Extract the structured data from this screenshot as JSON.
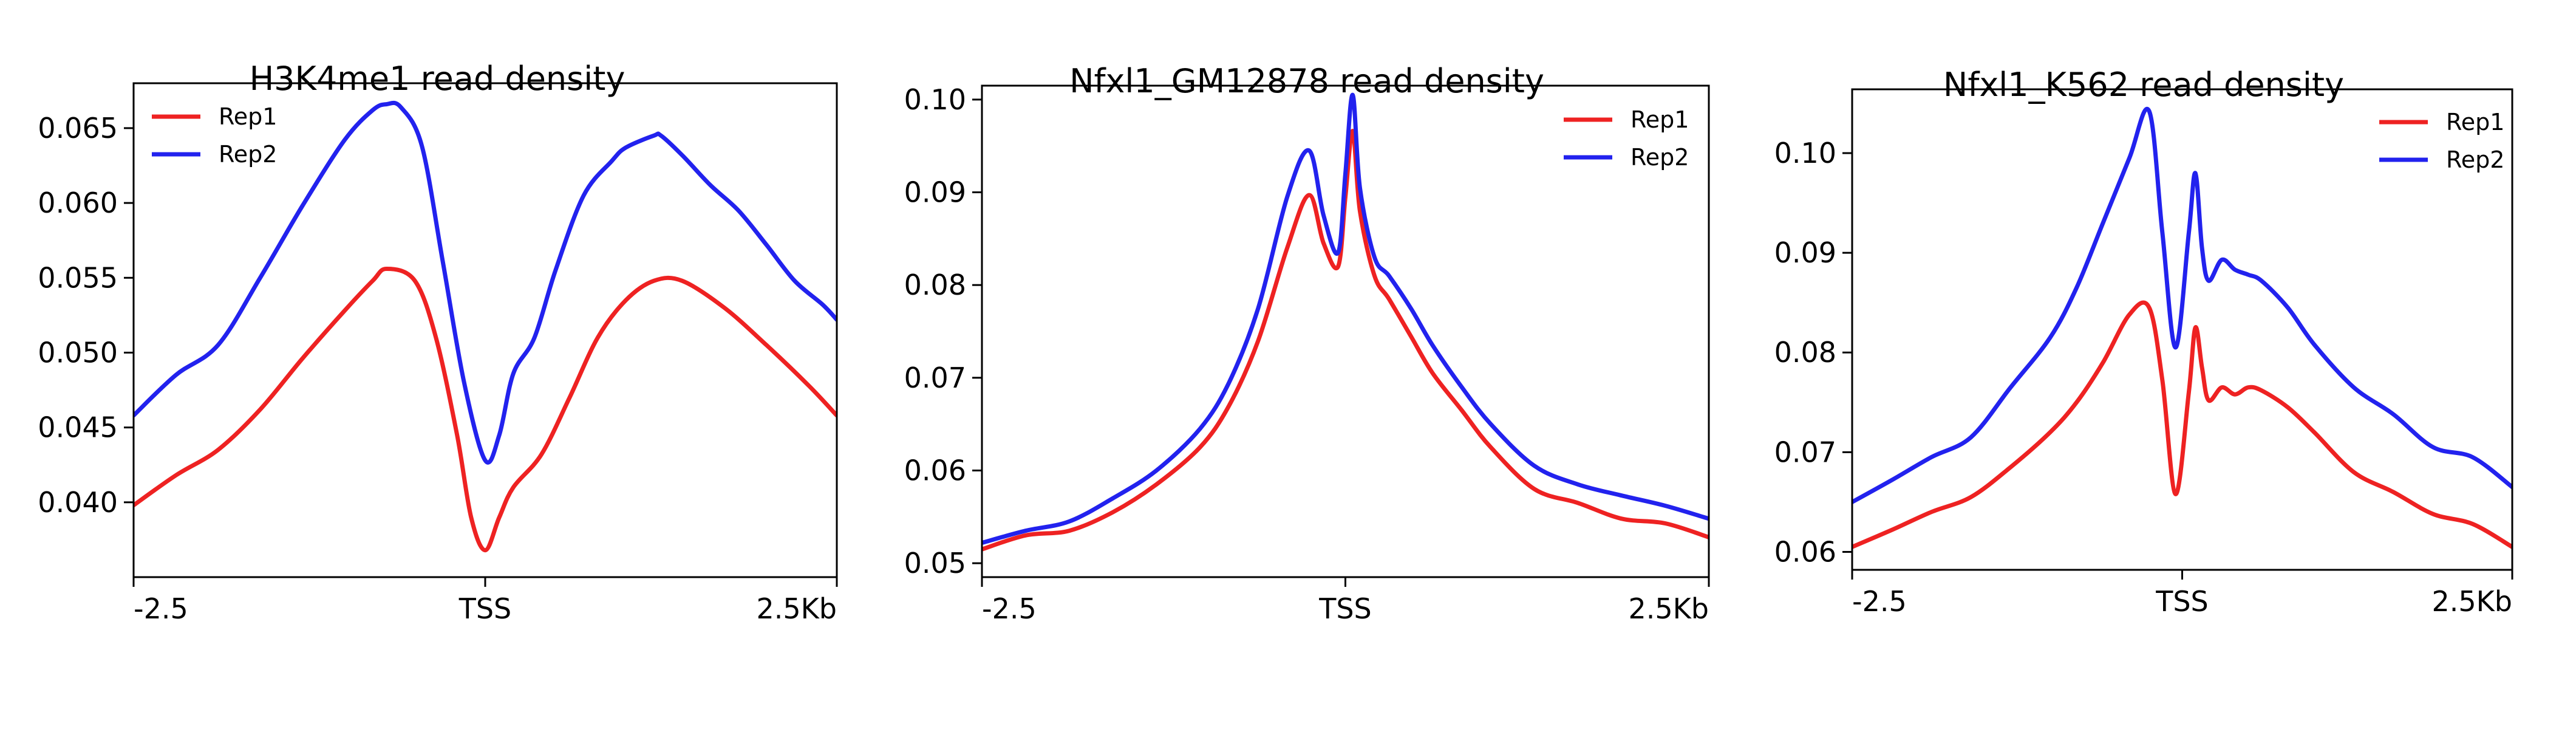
{
  "colors": {
    "rep1": "#ee2222",
    "rep2": "#2222ee"
  },
  "chart_data": [
    {
      "type": "line",
      "title": "H3K4me1 read density",
      "xlim": [
        -2.5,
        2.5
      ],
      "ylim": [
        0.035,
        0.068
      ],
      "xticks": [
        {
          "value": -2.5,
          "label": "-2.5"
        },
        {
          "value": 0,
          "label": "TSS"
        },
        {
          "value": 2.5,
          "label": "2.5Kb"
        }
      ],
      "yticks": [
        {
          "value": 0.04,
          "label": "0.040"
        },
        {
          "value": 0.045,
          "label": "0.045"
        },
        {
          "value": 0.05,
          "label": "0.050"
        },
        {
          "value": 0.055,
          "label": "0.055"
        },
        {
          "value": 0.06,
          "label": "0.060"
        },
        {
          "value": 0.065,
          "label": "0.065"
        }
      ],
      "legend": "top-left",
      "series": [
        {
          "name": "Rep1",
          "color": "#ee2222",
          "x": [
            -2.5,
            -2.2,
            -1.9,
            -1.6,
            -1.3,
            -1.0,
            -0.8,
            -0.7,
            -0.5,
            -0.35,
            -0.2,
            -0.1,
            0.0,
            0.1,
            0.2,
            0.4,
            0.6,
            0.8,
            1.0,
            1.2,
            1.4,
            1.7,
            2.0,
            2.3,
            2.5
          ],
          "y": [
            0.0398,
            0.0418,
            0.0435,
            0.0462,
            0.0496,
            0.0528,
            0.0548,
            0.0556,
            0.0548,
            0.051,
            0.0445,
            0.039,
            0.0368,
            0.039,
            0.041,
            0.0432,
            0.047,
            0.051,
            0.0535,
            0.0548,
            0.0548,
            0.053,
            0.0505,
            0.0478,
            0.0458
          ]
        },
        {
          "name": "Rep2",
          "color": "#2222ee",
          "x": [
            -2.5,
            -2.2,
            -1.9,
            -1.6,
            -1.3,
            -1.0,
            -0.8,
            -0.7,
            -0.6,
            -0.45,
            -0.3,
            -0.15,
            0.0,
            0.1,
            0.2,
            0.35,
            0.5,
            0.7,
            0.9,
            1.0,
            1.2,
            1.25,
            1.4,
            1.6,
            1.8,
            2.0,
            2.2,
            2.4,
            2.5
          ],
          "y": [
            0.0458,
            0.0485,
            0.0505,
            0.055,
            0.0598,
            0.0642,
            0.0662,
            0.0666,
            0.0664,
            0.0638,
            0.056,
            0.048,
            0.0428,
            0.0445,
            0.0486,
            0.051,
            0.0555,
            0.0605,
            0.0628,
            0.0637,
            0.0645,
            0.0645,
            0.0632,
            0.0612,
            0.0595,
            0.0572,
            0.0548,
            0.0532,
            0.0522
          ]
        }
      ]
    },
    {
      "type": "line",
      "title": "Nfxl1_GM12878 read density",
      "xlim": [
        -2.5,
        2.5
      ],
      "ylim": [
        0.0485,
        0.1015
      ],
      "xticks": [
        {
          "value": -2.5,
          "label": "-2.5"
        },
        {
          "value": 0,
          "label": "TSS"
        },
        {
          "value": 2.5,
          "label": "2.5Kb"
        }
      ],
      "yticks": [
        {
          "value": 0.05,
          "label": "0.05"
        },
        {
          "value": 0.06,
          "label": "0.06"
        },
        {
          "value": 0.07,
          "label": "0.07"
        },
        {
          "value": 0.08,
          "label": "0.08"
        },
        {
          "value": 0.09,
          "label": "0.09"
        },
        {
          "value": 0.1,
          "label": "0.10"
        }
      ],
      "legend": "top-right",
      "series": [
        {
          "name": "Rep1",
          "color": "#ee2222",
          "x": [
            -2.5,
            -2.2,
            -1.9,
            -1.6,
            -1.3,
            -1.0,
            -0.8,
            -0.6,
            -0.4,
            -0.25,
            -0.15,
            -0.05,
            0.0,
            0.05,
            0.1,
            0.2,
            0.3,
            0.45,
            0.6,
            0.8,
            1.0,
            1.3,
            1.6,
            1.9,
            2.2,
            2.5
          ],
          "y": [
            0.0515,
            0.053,
            0.0535,
            0.0555,
            0.0585,
            0.0625,
            0.067,
            0.074,
            0.084,
            0.0897,
            0.0845,
            0.082,
            0.0895,
            0.0966,
            0.088,
            0.081,
            0.0785,
            0.0745,
            0.0705,
            0.0665,
            0.0625,
            0.058,
            0.0565,
            0.0548,
            0.0543,
            0.0528
          ]
        },
        {
          "name": "Rep2",
          "color": "#2222ee",
          "x": [
            -2.5,
            -2.2,
            -1.9,
            -1.6,
            -1.3,
            -1.0,
            -0.8,
            -0.6,
            -0.4,
            -0.25,
            -0.15,
            -0.05,
            0.0,
            0.05,
            0.1,
            0.2,
            0.3,
            0.45,
            0.6,
            0.8,
            1.0,
            1.3,
            1.6,
            1.9,
            2.2,
            2.5
          ],
          "y": [
            0.0522,
            0.0535,
            0.0545,
            0.057,
            0.06,
            0.0645,
            0.0695,
            0.0775,
            0.0895,
            0.0945,
            0.0875,
            0.0835,
            0.092,
            0.1005,
            0.0905,
            0.083,
            0.081,
            0.0775,
            0.0735,
            0.069,
            0.065,
            0.0605,
            0.0585,
            0.0573,
            0.0562,
            0.0548
          ]
        }
      ]
    },
    {
      "type": "line",
      "title": "Nfxl1_K562 read density",
      "xlim": [
        -2.5,
        2.5
      ],
      "ylim": [
        0.0582,
        0.1064
      ],
      "xticks": [
        {
          "value": -2.5,
          "label": "-2.5"
        },
        {
          "value": 0,
          "label": "TSS"
        },
        {
          "value": 2.5,
          "label": "2.5Kb"
        }
      ],
      "yticks": [
        {
          "value": 0.06,
          "label": "0.06"
        },
        {
          "value": 0.07,
          "label": "0.07"
        },
        {
          "value": 0.08,
          "label": "0.08"
        },
        {
          "value": 0.09,
          "label": "0.09"
        },
        {
          "value": 0.1,
          "label": "0.10"
        }
      ],
      "legend": "top-right",
      "series": [
        {
          "name": "Rep1",
          "color": "#ee2222",
          "x": [
            -2.5,
            -2.2,
            -1.9,
            -1.6,
            -1.3,
            -1.0,
            -0.8,
            -0.6,
            -0.4,
            -0.25,
            -0.15,
            -0.05,
            0.05,
            0.1,
            0.15,
            0.2,
            0.3,
            0.4,
            0.5,
            0.6,
            0.8,
            1.0,
            1.3,
            1.6,
            1.9,
            2.2,
            2.5
          ],
          "y": [
            0.0605,
            0.0622,
            0.064,
            0.0655,
            0.0685,
            0.072,
            0.075,
            0.079,
            0.0838,
            0.0845,
            0.0772,
            0.0658,
            0.076,
            0.0825,
            0.0785,
            0.0752,
            0.0765,
            0.0758,
            0.0765,
            0.0762,
            0.0745,
            0.072,
            0.068,
            0.066,
            0.0638,
            0.0628,
            0.0605
          ]
        },
        {
          "name": "Rep2",
          "color": "#2222ee",
          "x": [
            -2.5,
            -2.2,
            -1.9,
            -1.6,
            -1.3,
            -1.0,
            -0.8,
            -0.6,
            -0.4,
            -0.25,
            -0.15,
            -0.05,
            0.05,
            0.1,
            0.15,
            0.2,
            0.3,
            0.4,
            0.5,
            0.6,
            0.8,
            1.0,
            1.3,
            1.6,
            1.9,
            2.2,
            2.5
          ],
          "y": [
            0.065,
            0.0672,
            0.0695,
            0.0715,
            0.0765,
            0.0815,
            0.0865,
            0.093,
            0.0995,
            0.1042,
            0.092,
            0.0805,
            0.092,
            0.098,
            0.0905,
            0.0872,
            0.0893,
            0.0883,
            0.0878,
            0.0872,
            0.0845,
            0.0808,
            0.0765,
            0.0738,
            0.0705,
            0.0695,
            0.0665
          ]
        }
      ]
    }
  ]
}
